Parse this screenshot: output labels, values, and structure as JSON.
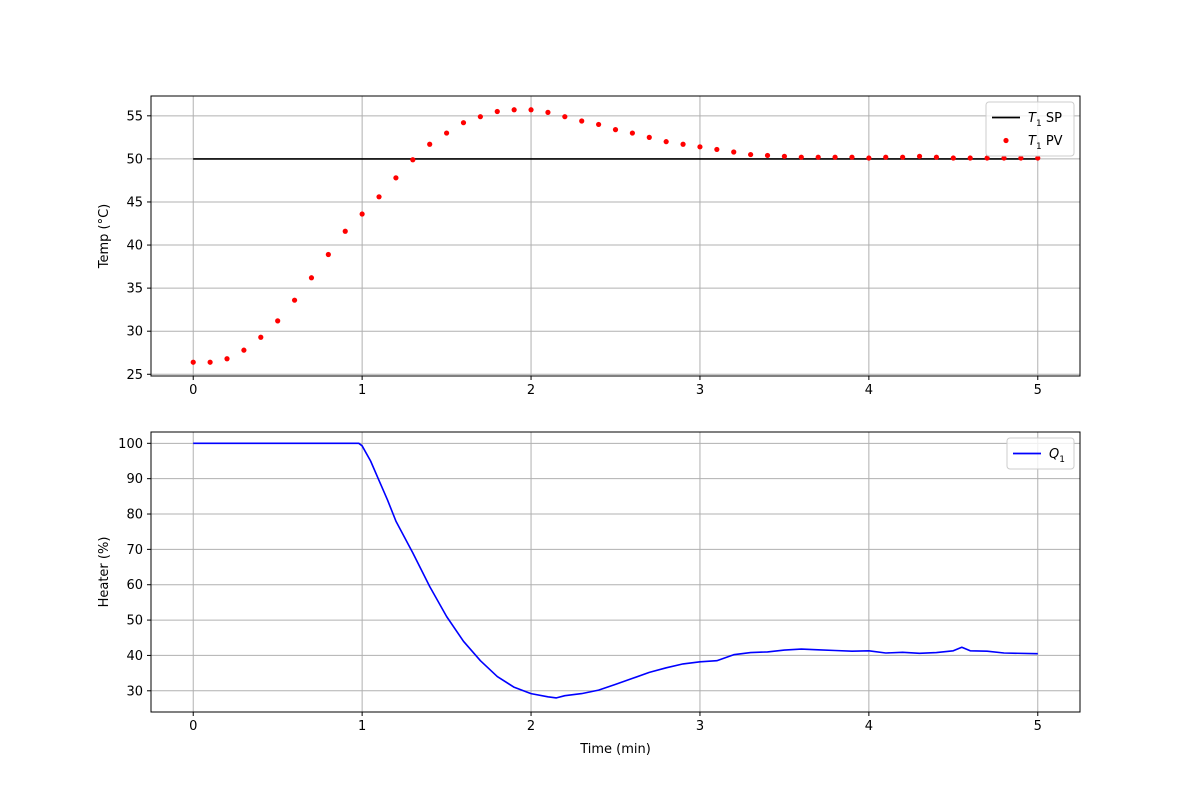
{
  "chart_data": [
    {
      "type": "line",
      "ylabel": "Temp (°C)",
      "xlim": [
        -0.25,
        5.25
      ],
      "ylim": [
        24.8,
        57.3
      ],
      "x_ticks": [
        0,
        1,
        2,
        3,
        4,
        5
      ],
      "y_ticks": [
        25,
        30,
        35,
        40,
        45,
        50,
        55
      ],
      "grid": true,
      "legend_position": "top-right",
      "series": [
        {
          "name": "T1 SP",
          "legend_main": "T",
          "legend_sub": "1",
          "legend_rest": " SP",
          "style": "line",
          "color": "#000000",
          "x": [
            0,
            5
          ],
          "y": [
            50,
            50
          ]
        },
        {
          "name": "T1 PV",
          "legend_main": "T",
          "legend_sub": "1",
          "legend_rest": " PV",
          "style": "markers",
          "color": "#ff0000",
          "x": [
            0,
            0.1,
            0.2,
            0.3,
            0.4,
            0.5,
            0.6,
            0.7,
            0.8,
            0.9,
            1.0,
            1.1,
            1.2,
            1.3,
            1.4,
            1.5,
            1.6,
            1.7,
            1.8,
            1.9,
            2.0,
            2.1,
            2.2,
            2.3,
            2.4,
            2.5,
            2.6,
            2.7,
            2.8,
            2.9,
            3.0,
            3.1,
            3.2,
            3.3,
            3.4,
            3.5,
            3.6,
            3.7,
            3.8,
            3.9,
            4.0,
            4.1,
            4.2,
            4.3,
            4.4,
            4.5,
            4.6,
            4.7,
            4.8,
            4.9,
            5.0
          ],
          "y": [
            26.4,
            26.4,
            26.8,
            27.8,
            29.3,
            31.2,
            33.6,
            36.2,
            38.9,
            41.6,
            43.6,
            45.6,
            47.8,
            49.9,
            51.7,
            53.0,
            54.2,
            54.9,
            55.5,
            55.7,
            55.7,
            55.4,
            54.9,
            54.4,
            54.0,
            53.4,
            53.0,
            52.5,
            52.0,
            51.7,
            51.4,
            51.1,
            50.8,
            50.5,
            50.4,
            50.3,
            50.2,
            50.2,
            50.2,
            50.2,
            50.1,
            50.2,
            50.2,
            50.3,
            50.2,
            50.1,
            50.1,
            50.1,
            50.1,
            50.1,
            50.1
          ]
        }
      ]
    },
    {
      "type": "line",
      "xlabel": "Time (min)",
      "ylabel": "Heater (%)",
      "xlim": [
        -0.25,
        5.25
      ],
      "ylim": [
        24,
        103.2
      ],
      "x_ticks": [
        0,
        1,
        2,
        3,
        4,
        5
      ],
      "y_ticks": [
        30,
        40,
        50,
        60,
        70,
        80,
        90,
        100
      ],
      "grid": true,
      "legend_position": "top-right",
      "series": [
        {
          "name": "Q1",
          "legend_main": "Q",
          "legend_sub": "1",
          "legend_rest": "",
          "style": "line",
          "color": "#0000ff",
          "x": [
            0,
            0.5,
            0.98,
            1.0,
            1.05,
            1.1,
            1.15,
            1.2,
            1.3,
            1.4,
            1.5,
            1.6,
            1.7,
            1.8,
            1.9,
            2.0,
            2.1,
            2.15,
            2.2,
            2.3,
            2.4,
            2.5,
            2.6,
            2.7,
            2.8,
            2.9,
            3.0,
            3.1,
            3.2,
            3.3,
            3.4,
            3.5,
            3.6,
            3.7,
            3.8,
            3.9,
            4.0,
            4.1,
            4.2,
            4.3,
            4.4,
            4.5,
            4.55,
            4.6,
            4.7,
            4.8,
            5.0
          ],
          "y": [
            100,
            100,
            100,
            99.3,
            95,
            89.5,
            84,
            78,
            69,
            59.5,
            51,
            44,
            38.5,
            34,
            31,
            29.2,
            28.3,
            28,
            28.6,
            29.2,
            30.2,
            31.8,
            33.5,
            35.2,
            36.5,
            37.6,
            38.2,
            38.5,
            40.2,
            40.8,
            41.0,
            41.5,
            41.8,
            41.6,
            41.4,
            41.2,
            41.3,
            40.7,
            40.9,
            40.6,
            40.8,
            41.3,
            42.3,
            41.3,
            41.2,
            40.7,
            40.5
          ]
        }
      ]
    }
  ]
}
